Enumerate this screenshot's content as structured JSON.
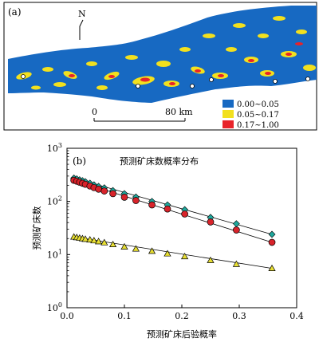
{
  "map_panel": {
    "label": "(a)",
    "north_label": "N",
    "scale_bar": {
      "zero": "0",
      "distance": "80 km"
    },
    "legend": [
      {
        "label": "0.00~0.05",
        "color": "#1769c2"
      },
      {
        "label": "0.05~0.17",
        "color": "#f2e01e"
      },
      {
        "label": "0.17~1.00",
        "color": "#e8232a"
      }
    ]
  },
  "chart_data": {
    "type": "scatter",
    "panel_label": "(b)",
    "title": "预测矿床数概率分布",
    "xlabel": "预测矿床后验概率",
    "ylabel": "预测矿床数",
    "xlim": [
      0,
      0.4
    ],
    "ylim_log10": [
      0,
      3
    ],
    "x_ticks": [
      "0.0",
      "0.1",
      "0.2",
      "0.3",
      "0.4"
    ],
    "y_ticks": [
      {
        "base": "10",
        "exp": "0",
        "value": 1
      },
      {
        "base": "10",
        "exp": "1",
        "value": 10
      },
      {
        "base": "10",
        "exp": "2",
        "value": 100
      },
      {
        "base": "10",
        "exp": "3",
        "value": 1000
      }
    ],
    "grid": false,
    "series": [
      {
        "marker": "diamond",
        "color": "#1fa79c",
        "x": [
          0.012,
          0.017,
          0.022,
          0.027,
          0.032,
          0.04,
          0.047,
          0.055,
          0.065,
          0.08,
          0.1,
          0.12,
          0.148,
          0.175,
          0.205,
          0.25,
          0.295,
          0.357
        ],
        "y": [
          275,
          265,
          255,
          245,
          235,
          220,
          205,
          192,
          180,
          160,
          140,
          121,
          100,
          86,
          70,
          50,
          38,
          24
        ]
      },
      {
        "marker": "circle",
        "color": "#d8232a",
        "x": [
          0.012,
          0.017,
          0.022,
          0.027,
          0.032,
          0.04,
          0.047,
          0.055,
          0.065,
          0.08,
          0.1,
          0.12,
          0.148,
          0.175,
          0.205,
          0.25,
          0.295,
          0.357
        ],
        "y": [
          250,
          240,
          230,
          220,
          210,
          195,
          182,
          170,
          157,
          140,
          120,
          104,
          86,
          72,
          58,
          41,
          29,
          17
        ]
      },
      {
        "marker": "triangle",
        "color": "#e8df33",
        "x": [
          0.012,
          0.017,
          0.022,
          0.027,
          0.032,
          0.04,
          0.047,
          0.055,
          0.065,
          0.08,
          0.1,
          0.12,
          0.148,
          0.175,
          0.205,
          0.25,
          0.295,
          0.357
        ],
        "y": [
          21.5,
          21,
          20.5,
          20,
          19.5,
          19,
          18.3,
          17.6,
          16.8,
          15.5,
          14,
          12.8,
          11.6,
          10.4,
          9.2,
          7.8,
          6.6,
          5.5
        ]
      }
    ]
  }
}
